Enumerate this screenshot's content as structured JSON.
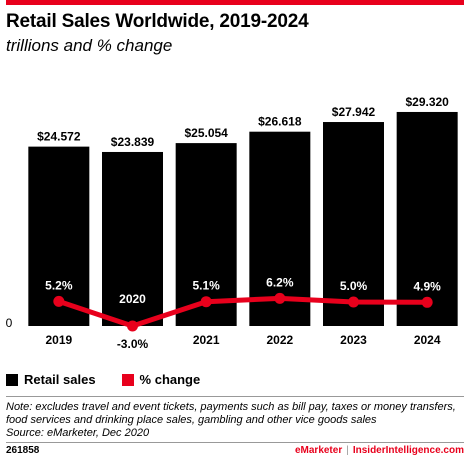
{
  "header": {
    "title": "Retail Sales Worldwide, 2019-2024",
    "subtitle": "trillions and % change"
  },
  "legend": {
    "items": [
      {
        "label": "Retail sales",
        "color": "#000000"
      },
      {
        "label": "% change",
        "color": "#e8001c"
      }
    ]
  },
  "chart_data": {
    "type": "bar",
    "categories": [
      "2019",
      "2020",
      "2021",
      "2022",
      "2023",
      "2024"
    ],
    "series": [
      {
        "name": "Retail sales",
        "chart_type": "bar",
        "values": [
          24.572,
          23.839,
          25.054,
          26.618,
          27.942,
          29.32
        ],
        "labels": [
          "$24.572",
          "$23.839",
          "$25.054",
          "$26.618",
          "$27.942",
          "$29.320"
        ],
        "color": "#000000"
      },
      {
        "name": "% change",
        "chart_type": "line",
        "values": [
          5.2,
          -3.0,
          5.1,
          6.2,
          5.0,
          4.9
        ],
        "labels": [
          "5.2%",
          "-3.0%",
          "5.1%",
          "6.2%",
          "5.0%",
          "4.9%"
        ],
        "color": "#e8001c"
      }
    ],
    "y_axis_zero_label": "0",
    "title": "Retail Sales Worldwide, 2019-2024",
    "subtitle": "trillions and % change"
  },
  "footnote": {
    "note": "Note: excludes travel and event tickets, payments such as bill pay, taxes or money transfers, food services and drinking place sales, gambling and other vice goods sales",
    "source": "Source: eMarketer, Dec 2020"
  },
  "footer": {
    "chart_id": "261858",
    "brand_left": "eMarketer",
    "separator": "|",
    "brand_right": "InsiderIntelligence.com"
  }
}
